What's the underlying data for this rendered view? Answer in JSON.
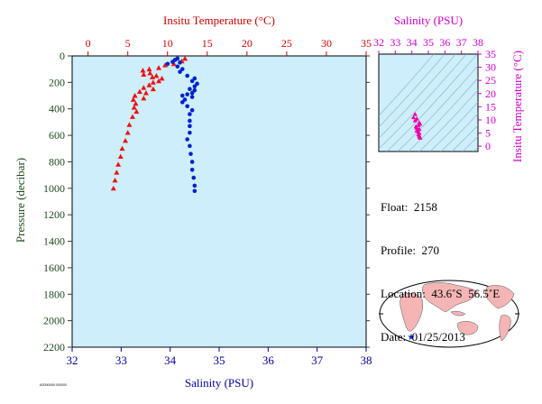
{
  "chart_data": [
    {
      "type": "scatter",
      "x_top_label": "Insitu Temperature (°C)",
      "x_bottom_label": "Salinity (PSU)",
      "ylabel": "Pressure (decibar)",
      "temp_range": [
        -2,
        35
      ],
      "sal_range": [
        32,
        38
      ],
      "pressure_range": [
        0,
        2200
      ],
      "temp_ticks": [
        "0",
        "5",
        "10",
        "15",
        "20",
        "25",
        "30",
        "35"
      ],
      "sal_ticks": [
        "32",
        "33",
        "34",
        "35",
        "36",
        "37",
        "38"
      ],
      "pressure_ticks": [
        "0",
        "200",
        "400",
        "600",
        "800",
        "1000",
        "1200",
        "1400",
        "1600",
        "1800",
        "2000",
        "2200"
      ],
      "colors": {
        "temperature": "#ee1111",
        "salinity": "#0022cc",
        "background": "#cdeefa",
        "axis_top": "#cc0000",
        "axis_bottom": "#000099",
        "axis_left": "#1f4a1f"
      },
      "series": [
        {
          "marker": "triangle",
          "points": [
            [
              12.2,
              20
            ],
            [
              11.8,
              40
            ],
            [
              10.8,
              60
            ],
            [
              9.7,
              70
            ],
            [
              8.9,
              90
            ],
            [
              7.7,
              100
            ],
            [
              6.9,
              110
            ],
            [
              7.8,
              130
            ],
            [
              7.0,
              140
            ],
            [
              8.6,
              150
            ],
            [
              8.1,
              160
            ],
            [
              9.3,
              170
            ],
            [
              8.9,
              190
            ],
            [
              8.2,
              200
            ],
            [
              7.7,
              220
            ],
            [
              7.0,
              240
            ],
            [
              8.2,
              250
            ],
            [
              6.5,
              270
            ],
            [
              7.3,
              280
            ],
            [
              5.9,
              300
            ],
            [
              7.0,
              320
            ],
            [
              5.7,
              330
            ],
            [
              6.0,
              360
            ],
            [
              5.8,
              390
            ],
            [
              6.1,
              420
            ],
            [
              5.6,
              460
            ],
            [
              5.2,
              520
            ],
            [
              5.0,
              580
            ],
            [
              4.7,
              640
            ],
            [
              4.3,
              700
            ],
            [
              4.1,
              760
            ],
            [
              3.8,
              820
            ],
            [
              3.6,
              880
            ],
            [
              3.4,
              940
            ],
            [
              3.2,
              1000
            ]
          ]
        },
        {
          "marker": "circle",
          "points": [
            [
              33.95,
              60
            ],
            [
              34.05,
              45
            ],
            [
              34.1,
              30
            ],
            [
              34.15,
              20
            ],
            [
              34.2,
              50
            ],
            [
              34.15,
              80
            ],
            [
              34.25,
              100
            ],
            [
              34.2,
              120
            ],
            [
              34.35,
              150
            ],
            [
              34.5,
              170
            ],
            [
              34.45,
              190
            ],
            [
              34.55,
              210
            ],
            [
              34.5,
              230
            ],
            [
              34.4,
              250
            ],
            [
              34.5,
              260
            ],
            [
              34.45,
              280
            ],
            [
              34.35,
              290
            ],
            [
              34.25,
              300
            ],
            [
              34.45,
              310
            ],
            [
              34.3,
              330
            ],
            [
              34.25,
              350
            ],
            [
              34.35,
              380
            ],
            [
              34.45,
              410
            ],
            [
              34.4,
              440
            ],
            [
              34.4,
              490
            ],
            [
              34.4,
              530
            ],
            [
              34.4,
              580
            ],
            [
              34.35,
              630
            ],
            [
              34.4,
              680
            ],
            [
              34.42,
              740
            ],
            [
              34.45,
              800
            ],
            [
              34.45,
              860
            ],
            [
              34.48,
              920
            ],
            [
              34.5,
              980
            ],
            [
              34.5,
              1020
            ]
          ]
        }
      ]
    },
    {
      "type": "scatter",
      "title": "Salinity (PSU)",
      "ylabel": "Insitu Temperature (°C)",
      "x_ticks": [
        "32",
        "33",
        "34",
        "35",
        "36",
        "37",
        "38"
      ],
      "y_ticks": [
        "0",
        "5",
        "10",
        "15",
        "20",
        "25",
        "30",
        "35"
      ],
      "xlim": [
        32,
        38
      ],
      "ylim": [
        -2,
        35
      ],
      "points": [
        [
          34.2,
          12.2
        ],
        [
          34.1,
          11.0
        ],
        [
          34.3,
          10.5
        ],
        [
          34.2,
          9.8
        ],
        [
          34.45,
          9.0
        ],
        [
          34.5,
          8.5
        ],
        [
          34.4,
          8.0
        ],
        [
          34.25,
          7.5
        ],
        [
          34.3,
          7.0
        ],
        [
          34.45,
          6.5
        ],
        [
          34.3,
          6.0
        ],
        [
          34.4,
          5.5
        ],
        [
          34.45,
          5.0
        ],
        [
          34.4,
          4.5
        ],
        [
          34.45,
          4.0
        ],
        [
          34.48,
          3.5
        ],
        [
          34.5,
          3.2
        ]
      ]
    }
  ],
  "info": {
    "float": "Float:  2158",
    "profile": "Profile:  270",
    "location": "Location:  43.6˚S  56.5˚E",
    "date": "Date:  01/25/2013"
  },
  "map": {
    "marker_lon": 56.5,
    "marker_lat": -43.6
  },
  "footer_text": "AS000000/ 000000"
}
